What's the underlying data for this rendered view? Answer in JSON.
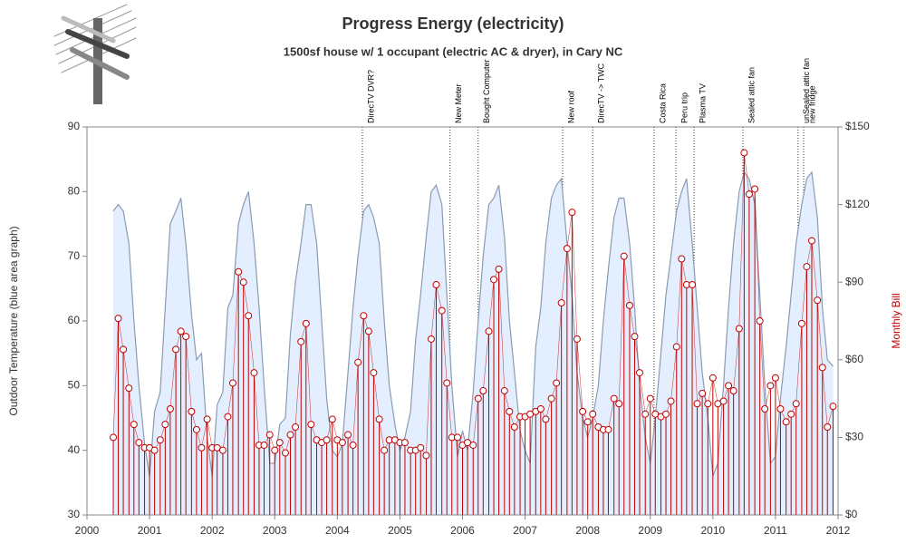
{
  "chart_data": {
    "type": "area-needle",
    "title": "Progress Energy (electricity)",
    "subtitle": "1500sf house w/ 1 occupant (electric AC & dryer), in Cary NC",
    "y_label": "Outdoor Temperature (blue area graph)",
    "y2_label": "Monthly Bill",
    "xlim": [
      2000,
      2012
    ],
    "xticks": [
      2000,
      2001,
      2002,
      2003,
      2004,
      2005,
      2006,
      2007,
      2008,
      2009,
      2010,
      2011,
      2012
    ],
    "ylim": [
      30,
      90
    ],
    "yticks": [
      30,
      40,
      50,
      60,
      70,
      80,
      90
    ],
    "y2lim": [
      0,
      150
    ],
    "y2ticks": [
      {
        "value": 0,
        "label": "$0"
      },
      {
        "value": 30,
        "label": "$30"
      },
      {
        "value": 60,
        "label": "$60"
      },
      {
        "value": 90,
        "label": "$90"
      },
      {
        "value": 120,
        "label": "$120"
      },
      {
        "value": 150,
        "label": "$150"
      }
    ],
    "x": [
      2000.42,
      2000.5,
      2000.58,
      2000.67,
      2000.75,
      2000.83,
      2000.92,
      2001.0,
      2001.08,
      2001.17,
      2001.25,
      2001.33,
      2001.42,
      2001.5,
      2001.58,
      2001.67,
      2001.75,
      2001.83,
      2001.92,
      2002.0,
      2002.08,
      2002.17,
      2002.25,
      2002.33,
      2002.42,
      2002.5,
      2002.58,
      2002.67,
      2002.75,
      2002.83,
      2002.92,
      2003.0,
      2003.08,
      2003.17,
      2003.25,
      2003.33,
      2003.42,
      2003.5,
      2003.58,
      2003.67,
      2003.75,
      2003.83,
      2003.92,
      2004.0,
      2004.08,
      2004.17,
      2004.25,
      2004.33,
      2004.42,
      2004.5,
      2004.58,
      2004.67,
      2004.75,
      2004.83,
      2004.92,
      2005.0,
      2005.08,
      2005.17,
      2005.25,
      2005.33,
      2005.42,
      2005.5,
      2005.58,
      2005.67,
      2005.75,
      2005.83,
      2005.92,
      2006.0,
      2006.08,
      2006.17,
      2006.25,
      2006.33,
      2006.42,
      2006.5,
      2006.58,
      2006.67,
      2006.75,
      2006.83,
      2006.92,
      2007.0,
      2007.08,
      2007.17,
      2007.25,
      2007.33,
      2007.42,
      2007.5,
      2007.58,
      2007.67,
      2007.75,
      2007.83,
      2007.92,
      2008.0,
      2008.08,
      2008.17,
      2008.25,
      2008.33,
      2008.42,
      2008.5,
      2008.58,
      2008.67,
      2008.75,
      2008.83,
      2008.92,
      2009.0,
      2009.08,
      2009.17,
      2009.25,
      2009.33,
      2009.42,
      2009.5,
      2009.58,
      2009.67,
      2009.75,
      2009.83,
      2009.92,
      2010.0,
      2010.08,
      2010.17,
      2010.25,
      2010.33,
      2010.42,
      2010.5,
      2010.58,
      2010.67,
      2010.75,
      2010.83,
      2010.92,
      2011.0,
      2011.08,
      2011.17,
      2011.25,
      2011.33,
      2011.42,
      2011.5,
      2011.58,
      2011.67,
      2011.75,
      2011.83,
      2011.92
    ],
    "series": [
      {
        "axis": "y",
        "color": "#8b9bb0",
        "fill": "#e3efff",
        "values": [
          77,
          78,
          77,
          72,
          60,
          50,
          41,
          36,
          46,
          49,
          62,
          75,
          77,
          79,
          72,
          61,
          54,
          55,
          42,
          36,
          47,
          49,
          62,
          64,
          75,
          78,
          80,
          72,
          62,
          50,
          38,
          38,
          44,
          45,
          58,
          66,
          72,
          78,
          78,
          72,
          60,
          48,
          40,
          39,
          41,
          52,
          62,
          70,
          77,
          78,
          76,
          72,
          60,
          50,
          44,
          40,
          42,
          46,
          57,
          64,
          73,
          80,
          81,
          78,
          64,
          50,
          39,
          43,
          40,
          49,
          60,
          70,
          78,
          79,
          81,
          73,
          60,
          52,
          43,
          40,
          38,
          56,
          62,
          72,
          79,
          81,
          82,
          72,
          64,
          52,
          45,
          42,
          45,
          50,
          60,
          68,
          76,
          79,
          79,
          72,
          62,
          50,
          42,
          38,
          45,
          55,
          64,
          70,
          77,
          80,
          82,
          72,
          62,
          52,
          45,
          36,
          38,
          50,
          62,
          72,
          80,
          83,
          82,
          78,
          64,
          50,
          38,
          39,
          48,
          56,
          64,
          72,
          78,
          82,
          83,
          76,
          62,
          54,
          53
        ]
      },
      {
        "axis": "y2",
        "color": "#c00000",
        "values": [
          30,
          76,
          64,
          49,
          35,
          28,
          26,
          26,
          25,
          29,
          35,
          41,
          64,
          71,
          69,
          40,
          33,
          26,
          37,
          26,
          26,
          25,
          38,
          51,
          94,
          90,
          77,
          55,
          27,
          27,
          31,
          25,
          28,
          24,
          31,
          34,
          67,
          74,
          35,
          29,
          28,
          29,
          37,
          29,
          28,
          31,
          27,
          59,
          77,
          71,
          55,
          37,
          25,
          29,
          29,
          28,
          28,
          25,
          25,
          26,
          23,
          68,
          89,
          79,
          51,
          30,
          30,
          27,
          28,
          27,
          45,
          48,
          71,
          91,
          95,
          48,
          40,
          34,
          38,
          38,
          39,
          40,
          41,
          37,
          45,
          51,
          82,
          103,
          117,
          68,
          40,
          36,
          39,
          34,
          33,
          33,
          45,
          43,
          100,
          81,
          69,
          55,
          39,
          45,
          39,
          38,
          39,
          44,
          65,
          99,
          89,
          89,
          43,
          47,
          43,
          53,
          43,
          44,
          50,
          48,
          72,
          140,
          124,
          126,
          75,
          41,
          50,
          53,
          41,
          36,
          39,
          43,
          74,
          96,
          106,
          83,
          57,
          34,
          42
        ]
      }
    ],
    "annotations": [
      {
        "x": 2004.4,
        "label": "DirecTV DVR?"
      },
      {
        "x": 2005.8,
        "label": "New Meter"
      },
      {
        "x": 2006.25,
        "label": "Bought  Computer"
      },
      {
        "x": 2007.6,
        "label": "New roof"
      },
      {
        "x": 2008.08,
        "label": "DirecTV -> TWC"
      },
      {
        "x": 2009.06,
        "label": "Costa Rica"
      },
      {
        "x": 2009.41,
        "label": "Peru trip"
      },
      {
        "x": 2009.7,
        "label": "Plasma TV"
      },
      {
        "x": 2010.48,
        "label": "Sealed attic fan"
      },
      {
        "x": 2011.36,
        "label": "unSealed attic fan"
      },
      {
        "x": 2011.45,
        "label": "new fridge"
      }
    ]
  }
}
